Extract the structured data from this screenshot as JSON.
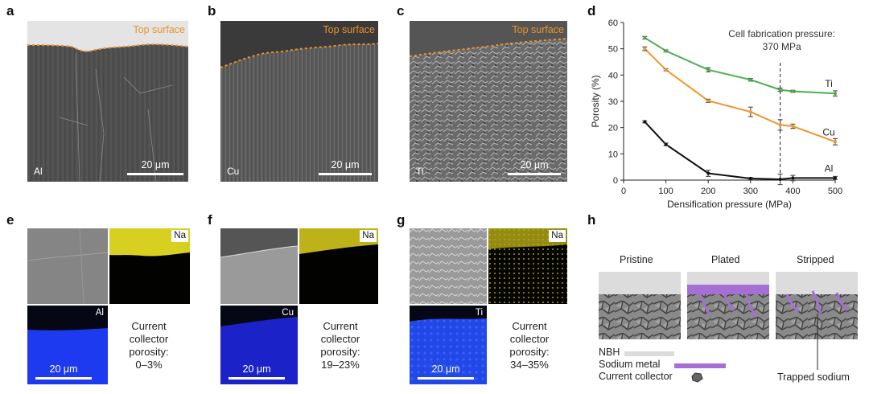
{
  "panels": {
    "a": {
      "letter": "a",
      "top_label": "Top surface",
      "material": "Al",
      "scale": "20 μm"
    },
    "b": {
      "letter": "b",
      "top_label": "Top surface",
      "material": "Cu",
      "scale": "20 μm"
    },
    "c": {
      "letter": "c",
      "top_label": "Top surface",
      "material": "Ti",
      "scale": "20 μm"
    },
    "d": {
      "letter": "d"
    },
    "e": {
      "letter": "e",
      "eds_element": "Na",
      "material": "Al",
      "scale": "20 μm",
      "porosity": [
        "Current",
        "collector",
        "porosity:",
        "0–3%"
      ]
    },
    "f": {
      "letter": "f",
      "eds_element": "Na",
      "material": "Cu",
      "scale": "20 μm",
      "porosity": [
        "Current",
        "collector",
        "porosity:",
        "19–23%"
      ]
    },
    "g": {
      "letter": "g",
      "eds_element": "Na",
      "material": "Ti",
      "scale": "20 μm",
      "porosity": [
        "Current",
        "collector",
        "porosity:",
        "34–35%"
      ]
    },
    "h": {
      "letter": "h",
      "stages": [
        "Pristine",
        "Plated",
        "Stripped"
      ],
      "legend": [
        {
          "label": "NBH",
          "color": "#dcdcdc"
        },
        {
          "label": "Sodium metal",
          "color": "#a56fd6"
        },
        {
          "label": "Current collector",
          "color": "#666666"
        }
      ],
      "trapped_label": "Trapped sodium"
    }
  },
  "chart_data": {
    "type": "line",
    "xlabel": "Densification pressure (MPa)",
    "ylabel": "Porosity (%)",
    "xlim": [
      0,
      500
    ],
    "ylim": [
      0,
      60
    ],
    "xticks": [
      0,
      100,
      200,
      300,
      400,
      500
    ],
    "yticks": [
      0,
      10,
      20,
      30,
      40,
      50,
      60
    ],
    "x": [
      50,
      100,
      200,
      300,
      370,
      400,
      500
    ],
    "annotation": {
      "text_line1": "Cell fabrication pressure:",
      "text_line2": "370 MPa",
      "x": 370
    },
    "series": [
      {
        "name": "Ti",
        "color": "#4caf50",
        "values": [
          54.2,
          49.2,
          42.0,
          38.2,
          34.4,
          33.8,
          33.0
        ],
        "errors": [
          0.5,
          0.4,
          0.8,
          0.5,
          0.6,
          0.4,
          1.0
        ]
      },
      {
        "name": "Cu",
        "color": "#f0962c",
        "values": [
          50.0,
          42.0,
          30.2,
          26.0,
          21.0,
          20.5,
          14.6
        ],
        "errors": [
          0.7,
          0.4,
          0.6,
          1.8,
          2.0,
          0.8,
          1.2
        ]
      },
      {
        "name": "Al",
        "color": "#111111",
        "values": [
          22.2,
          13.6,
          2.6,
          0.6,
          0.3,
          0.8,
          0.8
        ],
        "errors": [
          0.4,
          0.5,
          1.2,
          0.4,
          2.0,
          1.0,
          0.6
        ]
      }
    ]
  }
}
